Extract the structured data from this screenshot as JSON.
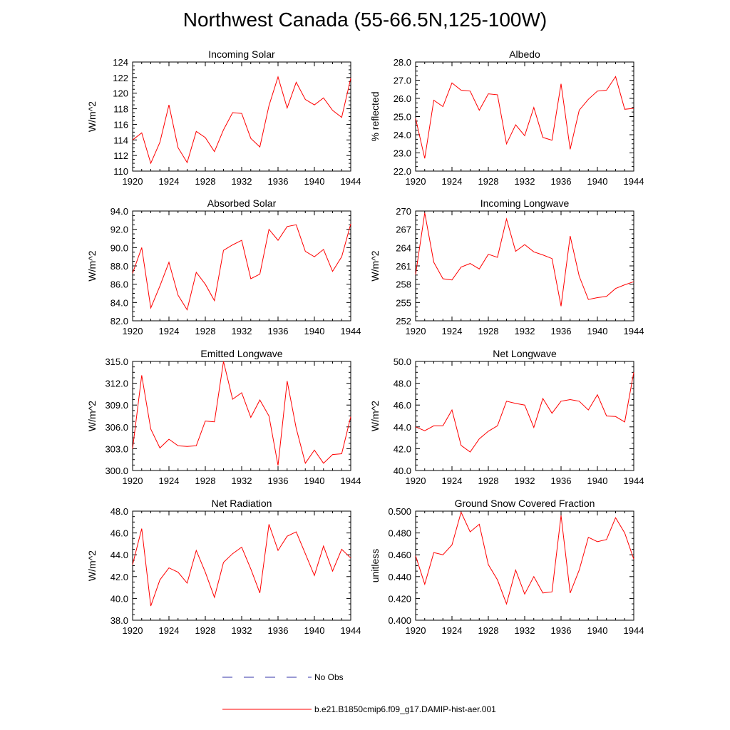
{
  "title": "Northwest Canada (55-66.5N,125-100W)",
  "legend": {
    "obs_label": "No Obs",
    "obs_color": "#3333aa",
    "model_label": "b.e21.B1850cmip6.f09_g17.DAMIP-hist-aer.001",
    "model_color": "#ff0000"
  },
  "chart_data": [
    {
      "type": "line",
      "title": "Incoming Solar",
      "ylabel": "W/m^2",
      "xlim": [
        1920,
        1944
      ],
      "ylim": [
        110,
        124
      ],
      "xticks": [
        "1920",
        "1924",
        "1928",
        "1932",
        "1936",
        "1940",
        "1944"
      ],
      "yticks": [
        "110",
        "112",
        "114",
        "116",
        "118",
        "120",
        "122",
        "124"
      ],
      "x": [
        1920,
        1921,
        1922,
        1923,
        1924,
        1925,
        1926,
        1927,
        1928,
        1929,
        1930,
        1931,
        1932,
        1933,
        1934,
        1935,
        1936,
        1937,
        1938,
        1939,
        1940,
        1941,
        1942,
        1943,
        1944
      ],
      "series": [
        {
          "values": [
            114.0,
            114.9,
            111.0,
            113.7,
            118.5,
            113.0,
            111.1,
            115.1,
            114.3,
            112.5,
            115.3,
            117.5,
            117.4,
            114.2,
            113.1,
            118.4,
            122.1,
            118.1,
            121.4,
            119.2,
            118.5,
            119.4,
            117.8,
            116.9,
            121.9
          ]
        }
      ]
    },
    {
      "type": "line",
      "title": "Albedo",
      "ylabel": "% reflected",
      "xlim": [
        1920,
        1944
      ],
      "ylim": [
        22.0,
        28.0
      ],
      "xticks": [
        "1920",
        "1924",
        "1928",
        "1932",
        "1936",
        "1940",
        "1944"
      ],
      "yticks": [
        "22.0",
        "23.0",
        "24.0",
        "25.0",
        "26.0",
        "27.0",
        "28.0"
      ],
      "x": [
        1920,
        1921,
        1922,
        1923,
        1924,
        1925,
        1926,
        1927,
        1928,
        1929,
        1930,
        1931,
        1932,
        1933,
        1934,
        1935,
        1936,
        1937,
        1938,
        1939,
        1940,
        1941,
        1942,
        1943,
        1944
      ],
      "series": [
        {
          "values": [
            24.9,
            22.7,
            25.9,
            25.55,
            26.85,
            26.45,
            26.4,
            25.35,
            26.25,
            26.2,
            23.5,
            24.55,
            23.95,
            25.5,
            23.85,
            23.7,
            26.8,
            23.2,
            25.35,
            25.95,
            26.4,
            26.45,
            27.2,
            25.4,
            25.45
          ]
        }
      ]
    },
    {
      "type": "line",
      "title": "Absorbed Solar",
      "ylabel": "W/m^2",
      "xlim": [
        1920,
        1944
      ],
      "ylim": [
        82.0,
        94.0
      ],
      "xticks": [
        "1920",
        "1924",
        "1928",
        "1932",
        "1936",
        "1940",
        "1944"
      ],
      "yticks": [
        "82.0",
        "84.0",
        "86.0",
        "88.0",
        "90.0",
        "92.0",
        "94.0"
      ],
      "x": [
        1920,
        1921,
        1922,
        1923,
        1924,
        1925,
        1926,
        1927,
        1928,
        1929,
        1930,
        1931,
        1932,
        1933,
        1934,
        1935,
        1936,
        1937,
        1938,
        1939,
        1940,
        1941,
        1942,
        1943,
        1944
      ],
      "series": [
        {
          "values": [
            87.2,
            90.0,
            83.4,
            85.8,
            88.4,
            84.8,
            83.2,
            87.3,
            86.0,
            84.2,
            89.7,
            90.3,
            90.8,
            86.6,
            87.1,
            92.0,
            90.8,
            92.3,
            92.5,
            89.6,
            89.0,
            89.8,
            87.4,
            89.0,
            92.6
          ]
        }
      ]
    },
    {
      "type": "line",
      "title": "Incoming Longwave",
      "ylabel": "W/m^2",
      "xlim": [
        1920,
        1944
      ],
      "ylim": [
        252,
        270
      ],
      "xticks": [
        "1920",
        "1924",
        "1928",
        "1932",
        "1936",
        "1940",
        "1944"
      ],
      "yticks": [
        "252",
        "255",
        "258",
        "261",
        "264",
        "267",
        "270"
      ],
      "x": [
        1920,
        1921,
        1922,
        1923,
        1924,
        1925,
        1926,
        1927,
        1928,
        1929,
        1930,
        1931,
        1932,
        1933,
        1934,
        1935,
        1936,
        1937,
        1938,
        1939,
        1940,
        1941,
        1942,
        1943,
        1944
      ],
      "series": [
        {
          "values": [
            259.6,
            269.7,
            261.6,
            258.9,
            258.7,
            260.8,
            261.4,
            260.5,
            262.9,
            262.4,
            268.7,
            263.4,
            264.5,
            263.3,
            262.8,
            262.2,
            254.4,
            265.9,
            259.3,
            255.5,
            255.8,
            256.0,
            257.3,
            257.9,
            258.4
          ]
        }
      ]
    },
    {
      "type": "line",
      "title": "Emitted Longwave",
      "ylabel": "W/m^2",
      "xlim": [
        1920,
        1944
      ],
      "ylim": [
        300.0,
        315.0
      ],
      "xticks": [
        "1920",
        "1924",
        "1928",
        "1932",
        "1936",
        "1940",
        "1944"
      ],
      "yticks": [
        "300.0",
        "303.0",
        "306.0",
        "309.0",
        "312.0",
        "315.0"
      ],
      "x": [
        1920,
        1921,
        1922,
        1923,
        1924,
        1925,
        1926,
        1927,
        1928,
        1929,
        1930,
        1931,
        1932,
        1933,
        1934,
        1935,
        1936,
        1937,
        1938,
        1939,
        1940,
        1941,
        1942,
        1943,
        1944
      ],
      "series": [
        {
          "values": [
            303.0,
            313.1,
            305.7,
            303.1,
            304.3,
            303.4,
            303.3,
            303.4,
            306.8,
            306.7,
            315.0,
            309.8,
            310.7,
            307.3,
            309.7,
            307.5,
            300.7,
            312.3,
            305.8,
            301.0,
            302.8,
            301.0,
            302.2,
            302.3,
            307.4
          ]
        }
      ]
    },
    {
      "type": "line",
      "title": "Net Longwave",
      "ylabel": "W/m^2",
      "xlim": [
        1920,
        1944
      ],
      "ylim": [
        40.0,
        50.0
      ],
      "xticks": [
        "1920",
        "1924",
        "1928",
        "1932",
        "1936",
        "1940",
        "1944"
      ],
      "yticks": [
        "40.0",
        "42.0",
        "44.0",
        "46.0",
        "48.0",
        "50.0"
      ],
      "x": [
        1920,
        1921,
        1922,
        1923,
        1924,
        1925,
        1926,
        1927,
        1928,
        1929,
        1930,
        1931,
        1932,
        1933,
        1934,
        1935,
        1936,
        1937,
        1938,
        1939,
        1940,
        1941,
        1942,
        1943,
        1944
      ],
      "series": [
        {
          "values": [
            44.0,
            43.65,
            44.1,
            44.1,
            45.55,
            42.3,
            41.7,
            42.9,
            43.6,
            44.1,
            46.35,
            46.15,
            46.0,
            43.95,
            46.6,
            45.25,
            46.35,
            46.5,
            46.35,
            45.55,
            46.95,
            45.0,
            44.95,
            44.45,
            49.0
          ]
        }
      ]
    },
    {
      "type": "line",
      "title": "Net Radiation",
      "ylabel": "W/m^2",
      "xlim": [
        1920,
        1944
      ],
      "ylim": [
        38.0,
        48.0
      ],
      "xticks": [
        "1920",
        "1924",
        "1928",
        "1932",
        "1936",
        "1940",
        "1944"
      ],
      "yticks": [
        "38.0",
        "40.0",
        "42.0",
        "44.0",
        "46.0",
        "48.0"
      ],
      "x": [
        1920,
        1921,
        1922,
        1923,
        1924,
        1925,
        1926,
        1927,
        1928,
        1929,
        1930,
        1931,
        1932,
        1933,
        1934,
        1935,
        1936,
        1937,
        1938,
        1939,
        1940,
        1941,
        1942,
        1943,
        1944
      ],
      "series": [
        {
          "values": [
            43.1,
            46.4,
            39.3,
            41.7,
            42.8,
            42.4,
            41.4,
            44.4,
            42.4,
            40.1,
            43.3,
            44.1,
            44.7,
            42.7,
            40.5,
            46.8,
            44.4,
            45.7,
            46.1,
            44.1,
            42.1,
            44.8,
            42.5,
            44.5,
            43.7
          ]
        }
      ]
    },
    {
      "type": "line",
      "title": "Ground Snow Covered Fraction",
      "ylabel": "unitless",
      "xlim": [
        1920,
        1944
      ],
      "ylim": [
        0.4,
        0.5
      ],
      "xticks": [
        "1920",
        "1924",
        "1928",
        "1932",
        "1936",
        "1940",
        "1944"
      ],
      "yticks": [
        "0.400",
        "0.420",
        "0.440",
        "0.460",
        "0.480",
        "0.500"
      ],
      "x": [
        1920,
        1921,
        1922,
        1923,
        1924,
        1925,
        1926,
        1927,
        1928,
        1929,
        1930,
        1931,
        1932,
        1933,
        1934,
        1935,
        1936,
        1937,
        1938,
        1939,
        1940,
        1941,
        1942,
        1943,
        1944
      ],
      "series": [
        {
          "values": [
            0.459,
            0.433,
            0.462,
            0.46,
            0.469,
            0.499,
            0.481,
            0.488,
            0.451,
            0.437,
            0.415,
            0.446,
            0.424,
            0.44,
            0.425,
            0.426,
            0.496,
            0.425,
            0.446,
            0.476,
            0.472,
            0.474,
            0.494,
            0.48,
            0.456
          ]
        }
      ]
    }
  ]
}
